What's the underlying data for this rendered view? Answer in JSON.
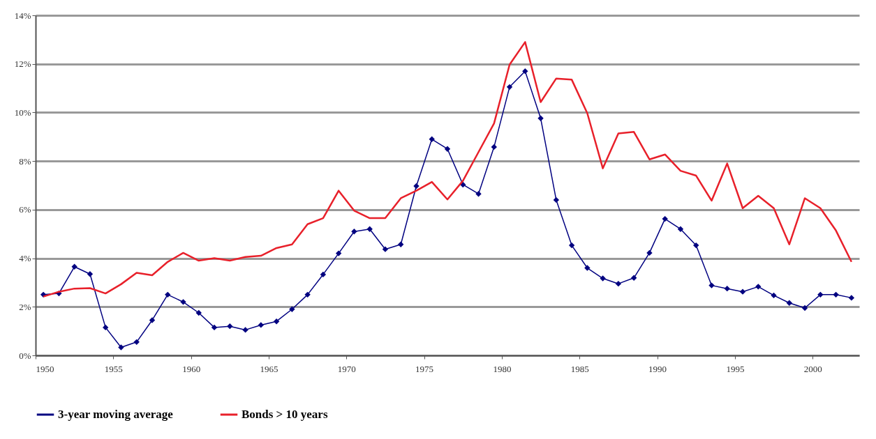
{
  "chart_data": {
    "type": "line",
    "x": [
      1950.5,
      1951.5,
      1952.5,
      1953.5,
      1954.5,
      1955.5,
      1956.5,
      1957.5,
      1958.5,
      1959.5,
      1960.5,
      1961.5,
      1962.5,
      1963.5,
      1964.5,
      1965.5,
      1966.5,
      1967.5,
      1968.5,
      1969.5,
      1970.5,
      1971.5,
      1972.5,
      1973.5,
      1974.5,
      1975.5,
      1976.5,
      1977.5,
      1978.5,
      1979.5,
      1980.5,
      1981.5,
      1982.5,
      1983.5,
      1984.5,
      1985.5,
      1986.5,
      1987.5,
      1988.5,
      1989.5,
      1990.5,
      1991.5,
      1992.5,
      1993.5,
      1994.5,
      1995.5,
      1996.5,
      1997.5,
      1998.5,
      1999.5,
      2000.5,
      2001.5,
      2002.5
    ],
    "series": [
      {
        "name": "3-year moving average",
        "color": "#000080",
        "marker": "diamond",
        "values": [
          2.5,
          2.55,
          3.65,
          3.35,
          1.15,
          0.33,
          0.55,
          1.45,
          2.5,
          2.2,
          1.75,
          1.15,
          1.2,
          1.05,
          1.25,
          1.4,
          1.9,
          2.5,
          3.33,
          4.2,
          5.1,
          5.2,
          4.37,
          4.57,
          6.97,
          8.9,
          8.5,
          7.03,
          6.65,
          8.58,
          11.05,
          11.7,
          9.76,
          6.4,
          4.53,
          3.6,
          3.17,
          2.95,
          3.19,
          4.22,
          5.62,
          5.2,
          4.53,
          2.88,
          2.75,
          2.62,
          2.83,
          2.47,
          2.16,
          1.95,
          2.5,
          2.5,
          2.37
        ]
      },
      {
        "name": "Bonds > 10 years",
        "color": "#e8202a",
        "values": [
          2.42,
          2.62,
          2.75,
          2.77,
          2.55,
          2.93,
          3.4,
          3.3,
          3.85,
          4.22,
          3.9,
          4.0,
          3.9,
          4.05,
          4.1,
          4.42,
          4.57,
          5.4,
          5.65,
          6.78,
          5.96,
          5.65,
          5.65,
          6.47,
          6.78,
          7.14,
          6.42,
          7.19,
          8.37,
          9.55,
          11.97,
          12.9,
          10.43,
          11.4,
          11.35,
          9.97,
          7.7,
          9.14,
          9.2,
          8.07,
          8.27,
          7.6,
          7.4,
          6.37,
          7.9,
          6.06,
          6.57,
          6.06,
          4.57,
          6.47,
          6.06,
          5.14,
          3.85
        ]
      }
    ],
    "xlim": [
      1950,
      2003
    ],
    "xticks": [
      1950,
      1955,
      1960,
      1965,
      1970,
      1975,
      1980,
      1985,
      1990,
      1995,
      2000
    ],
    "ylim": [
      0,
      14
    ],
    "yticks": [
      {
        "value": 0,
        "label": "0%"
      },
      {
        "value": 2,
        "label": "2%"
      },
      {
        "value": 4,
        "label": "4%"
      },
      {
        "value": 6,
        "label": "6%"
      },
      {
        "value": 8,
        "label": "8%"
      },
      {
        "value": 10,
        "label": "10%"
      },
      {
        "value": 12,
        "label": "12%"
      },
      {
        "value": 14,
        "label": "14%"
      }
    ],
    "grid": "y",
    "legend": "bottom"
  }
}
